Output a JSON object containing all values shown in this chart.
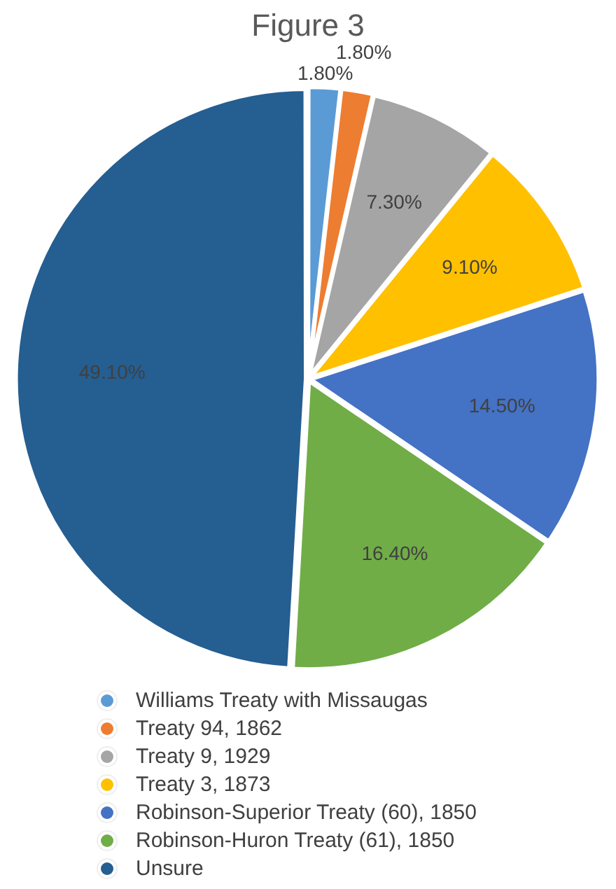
{
  "chart_data": {
    "type": "pie",
    "title": "Figure 3",
    "categories": [
      "Williams Treaty with Missaugas",
      "Treaty 94, 1862",
      "Treaty 9, 1929",
      "Treaty 3, 1873",
      "Robinson-Superior Treaty (60), 1850",
      "Robinson-Huron Treaty (61), 1850",
      "Unsure"
    ],
    "values": [
      1.8,
      1.8,
      7.3,
      9.1,
      14.5,
      16.4,
      49.1
    ],
    "value_labels": [
      "1.80%",
      "1.80%",
      "7.30%",
      "9.10%",
      "14.50%",
      "16.40%",
      "49.10%"
    ],
    "colors": [
      "#5b9bd5",
      "#ed7d31",
      "#a5a5a5",
      "#ffc000",
      "#4472c4",
      "#70ad47",
      "#255e91"
    ],
    "legend": "bottom"
  }
}
